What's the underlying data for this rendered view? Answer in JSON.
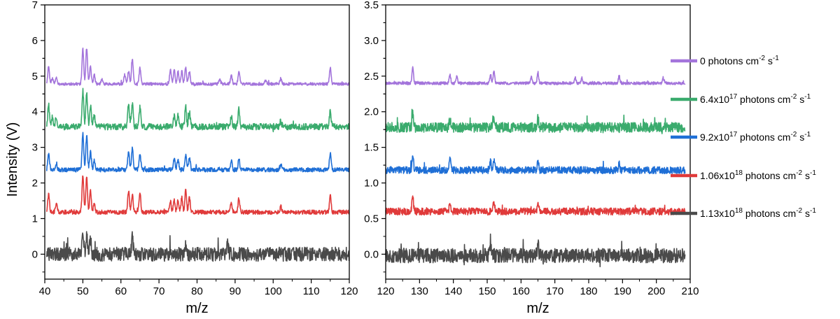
{
  "chart_data": {
    "type": "line",
    "ylabel": "Intensity (V)",
    "panels": [
      {
        "xlabel": "m/z",
        "xlim": [
          40,
          120
        ],
        "ylim": [
          -0.7,
          7
        ],
        "xticks": [
          "40",
          "50",
          "60",
          "70",
          "80",
          "90",
          "100",
          "110",
          "120"
        ],
        "yticks": [
          "0",
          "1",
          "2",
          "3",
          "4",
          "5",
          "6",
          "7"
        ],
        "series": [
          {
            "name": "0 photons cm-2 s-1",
            "color": "#a374db",
            "baseline": 4.78,
            "noise": 0.04,
            "peaks": [
              [
                41,
                0.5
              ],
              [
                42,
                0.15
              ],
              [
                43,
                0.2
              ],
              [
                50,
                1.0
              ],
              [
                51,
                1.0
              ],
              [
                52,
                0.5
              ],
              [
                53,
                0.25
              ],
              [
                55,
                0.12
              ],
              [
                61,
                0.25
              ],
              [
                62,
                0.35
              ],
              [
                63,
                0.7
              ],
              [
                65,
                0.45
              ],
              [
                73,
                0.4
              ],
              [
                74,
                0.4
              ],
              [
                75,
                0.35
              ],
              [
                76,
                0.35
              ],
              [
                77,
                0.45
              ],
              [
                78,
                0.35
              ],
              [
                86,
                0.15
              ],
              [
                89,
                0.25
              ],
              [
                91,
                0.35
              ],
              [
                98,
                0.1
              ],
              [
                102,
                0.15
              ],
              [
                115,
                0.45
              ]
            ]
          },
          {
            "name": "6.4x10^17 photons cm-2 s-1",
            "color": "#3aab6d",
            "baseline": 3.58,
            "noise": 0.09,
            "peaks": [
              [
                41,
                0.6
              ],
              [
                42,
                0.3
              ],
              [
                43,
                0.3
              ],
              [
                50,
                1.0
              ],
              [
                51,
                0.95
              ],
              [
                52,
                0.6
              ],
              [
                53,
                0.35
              ],
              [
                62,
                0.6
              ],
              [
                63,
                0.65
              ],
              [
                65,
                0.55
              ],
              [
                74,
                0.3
              ],
              [
                75,
                0.3
              ],
              [
                77,
                0.55
              ],
              [
                78,
                0.4
              ],
              [
                89,
                0.3
              ],
              [
                91,
                0.5
              ],
              [
                102,
                0.15
              ],
              [
                115,
                0.45
              ]
            ]
          },
          {
            "name": "9.2x10^17 photons cm-2 s-1",
            "color": "#1f6fd6",
            "baseline": 2.37,
            "noise": 0.06,
            "peaks": [
              [
                41,
                0.45
              ],
              [
                43,
                0.2
              ],
              [
                50,
                1.0
              ],
              [
                51,
                0.95
              ],
              [
                52,
                0.5
              ],
              [
                53,
                0.25
              ],
              [
                62,
                0.5
              ],
              [
                63,
                0.6
              ],
              [
                65,
                0.45
              ],
              [
                74,
                0.3
              ],
              [
                75,
                0.3
              ],
              [
                77,
                0.4
              ],
              [
                78,
                0.35
              ],
              [
                89,
                0.25
              ],
              [
                91,
                0.3
              ],
              [
                102,
                0.15
              ],
              [
                115,
                0.45
              ]
            ]
          },
          {
            "name": "1.06x10^18 photons cm-2 s-1",
            "color": "#e03a3a",
            "baseline": 1.18,
            "noise": 0.06,
            "peaks": [
              [
                41,
                0.5
              ],
              [
                43,
                0.25
              ],
              [
                50,
                1.0
              ],
              [
                51,
                1.0
              ],
              [
                52,
                0.6
              ],
              [
                53,
                0.25
              ],
              [
                62,
                0.6
              ],
              [
                63,
                0.5
              ],
              [
                65,
                0.55
              ],
              [
                73,
                0.3
              ],
              [
                74,
                0.35
              ],
              [
                75,
                0.35
              ],
              [
                76,
                0.4
              ],
              [
                77,
                0.6
              ],
              [
                78,
                0.4
              ],
              [
                89,
                0.25
              ],
              [
                91,
                0.4
              ],
              [
                102,
                0.15
              ],
              [
                115,
                0.45
              ]
            ]
          },
          {
            "name": "1.13x10^18 photons cm-2 s-1",
            "color": "#4a4a4a",
            "baseline": 0.0,
            "noise": 0.2,
            "peaks": [
              [
                50,
                0.7
              ],
              [
                51,
                0.5
              ],
              [
                52,
                0.4
              ],
              [
                63,
                0.45
              ],
              [
                77,
                0.3
              ],
              [
                88,
                0.3
              ]
            ]
          }
        ]
      },
      {
        "xlabel": "m/z",
        "xlim": [
          120,
          210
        ],
        "ylim": [
          -0.35,
          3.5
        ],
        "xticks": [
          "120",
          "130",
          "140",
          "150",
          "160",
          "170",
          "180",
          "190",
          "200",
          "210"
        ],
        "yticks": [
          "0.0",
          "0.5",
          "1.0",
          "1.5",
          "2.0",
          "2.5",
          "3.0",
          "3.5"
        ],
        "series": [
          {
            "name": "0 photons cm-2 s-1",
            "color": "#a374db",
            "baseline": 2.4,
            "noise": 0.02,
            "peaks": [
              [
                128,
                0.22
              ],
              [
                139,
                0.12
              ],
              [
                141,
                0.1
              ],
              [
                151,
                0.12
              ],
              [
                152,
                0.18
              ],
              [
                163,
                0.1
              ],
              [
                165,
                0.15
              ],
              [
                176,
                0.08
              ],
              [
                178,
                0.08
              ],
              [
                189,
                0.1
              ],
              [
                202,
                0.08
              ]
            ]
          },
          {
            "name": "6.4x10^17 photons cm-2 s-1",
            "color": "#3aab6d",
            "baseline": 1.78,
            "noise": 0.07,
            "peaks": [
              [
                128,
                0.2
              ],
              [
                139,
                0.12
              ],
              [
                152,
                0.15
              ],
              [
                165,
                0.12
              ]
            ]
          },
          {
            "name": "9.2x10^17 photons cm-2 s-1",
            "color": "#1f6fd6",
            "baseline": 1.18,
            "noise": 0.05,
            "peaks": [
              [
                128,
                0.2
              ],
              [
                139,
                0.15
              ],
              [
                151,
                0.12
              ],
              [
                152,
                0.15
              ],
              [
                165,
                0.12
              ],
              [
                189,
                0.08
              ]
            ]
          },
          {
            "name": "1.06x10^18 photons cm-2 s-1",
            "color": "#e03a3a",
            "baseline": 0.6,
            "noise": 0.05,
            "peaks": [
              [
                128,
                0.22
              ],
              [
                139,
                0.1
              ],
              [
                152,
                0.15
              ],
              [
                165,
                0.1
              ]
            ]
          },
          {
            "name": "1.13x10^18 photons cm-2 s-1",
            "color": "#4a4a4a",
            "baseline": -0.02,
            "noise": 0.1,
            "peaks": [
              [
                151,
                0.12
              ],
              [
                165,
                0.15
              ]
            ]
          }
        ]
      }
    ],
    "legend": {
      "placement": "right",
      "entries": [
        {
          "color": "#a374db",
          "label_parts": [
            "0 photons cm",
            "-2",
            " s",
            "-1"
          ]
        },
        {
          "color": "#3aab6d",
          "label_parts": [
            "6.4x10",
            "17",
            " photons cm",
            "-2",
            " s",
            "-1"
          ]
        },
        {
          "color": "#1f6fd6",
          "label_parts": [
            "9.2x10",
            "17",
            " photons cm",
            "-2",
            " s",
            "-1"
          ]
        },
        {
          "color": "#e03a3a",
          "label_parts": [
            "1.06x10",
            "18",
            " photons cm",
            "-2",
            " s",
            "-1"
          ]
        },
        {
          "color": "#4a4a4a",
          "label_parts": [
            "1.13x10",
            "18",
            " photons cm",
            "-2",
            " s",
            "-1"
          ]
        }
      ]
    }
  }
}
